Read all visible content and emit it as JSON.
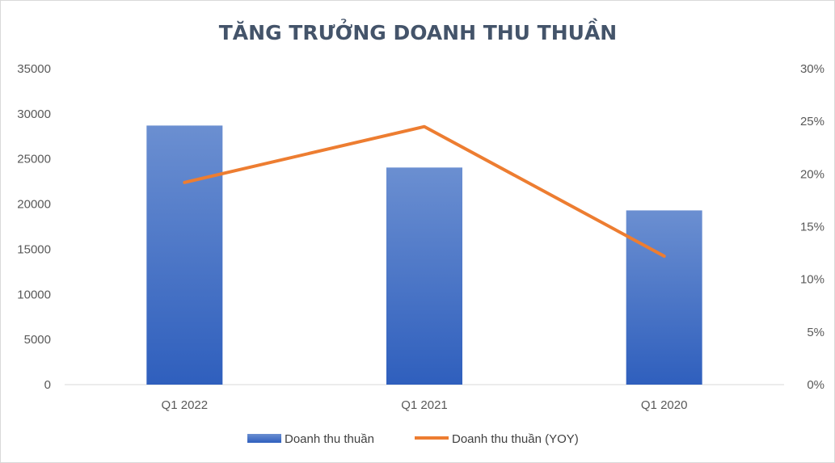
{
  "chart_data": {
    "type": "bar",
    "title": "TĂNG TRƯỞNG DOANH THU THUẦN",
    "categories": [
      "Q1 2022",
      "Q1 2021",
      "Q1 2020"
    ],
    "series": [
      {
        "name": "Doanh thu thuần",
        "type": "bar",
        "axis": "left",
        "values": [
          28700,
          24050,
          19300
        ],
        "color": "#4472c4"
      },
      {
        "name": "Doanh thu thuần (YOY)",
        "type": "line",
        "axis": "right",
        "values": [
          0.192,
          0.245,
          0.122
        ],
        "color": "#ed7d31"
      }
    ],
    "y_left": {
      "min": 0,
      "max": 35000,
      "ticks": [
        "0",
        "5000",
        "10000",
        "15000",
        "20000",
        "25000",
        "30000",
        "35000"
      ]
    },
    "y_right": {
      "min": 0,
      "max": 0.3,
      "ticks": [
        "0%",
        "5%",
        "10%",
        "15%",
        "20%",
        "25%",
        "30%"
      ]
    },
    "grid": false,
    "legend_position": "bottom"
  }
}
